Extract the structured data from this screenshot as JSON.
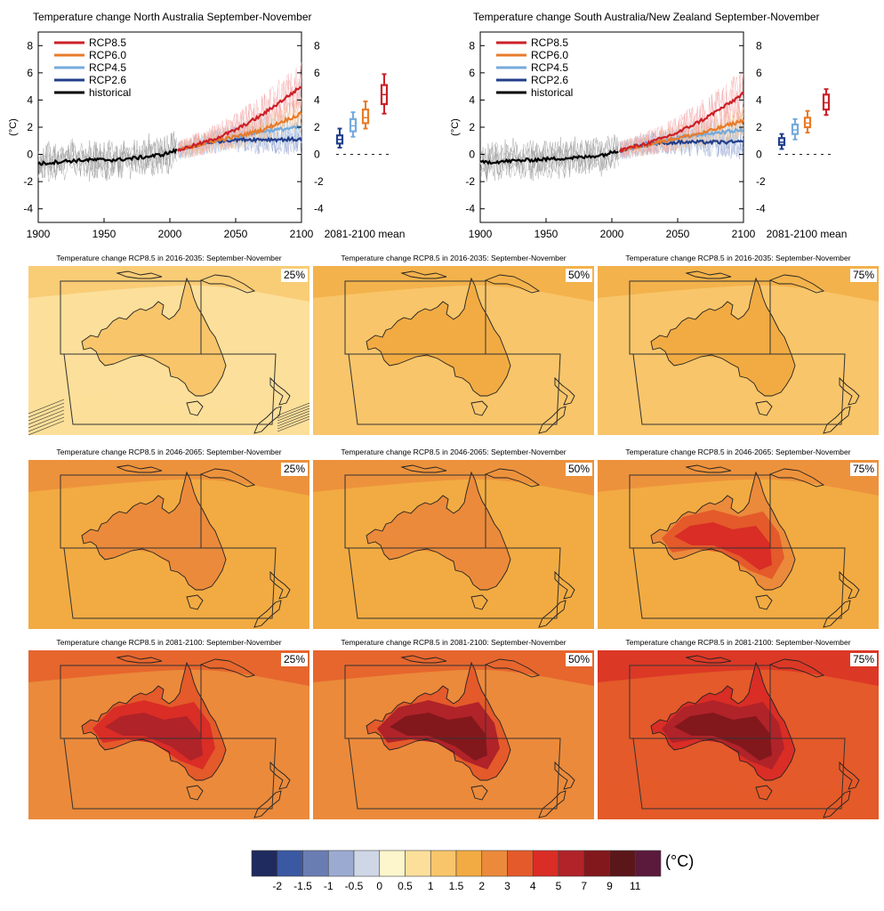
{
  "chart_data": [
    {
      "type": "line",
      "title": "Temperature change North Australia September-November",
      "ylabel": "(°C)",
      "xlim": [
        1900,
        2100
      ],
      "ylim": [
        -5,
        9
      ],
      "x_ticks": [
        "1900",
        "1950",
        "2000",
        "2050",
        "2100"
      ],
      "y_ticks": [
        "-4",
        "-2",
        "0",
        "2",
        "4",
        "6",
        "8"
      ],
      "legend_position": "top-left",
      "series": [
        {
          "name": "RCP8.5",
          "color": "#cc2027",
          "x": [
            2006,
            2030,
            2050,
            2070,
            2090,
            2100
          ],
          "y": [
            0.3,
            1.0,
            1.8,
            2.9,
            4.3,
            5.0
          ]
        },
        {
          "name": "RCP6.0",
          "color": "#e87b2a",
          "x": [
            2006,
            2030,
            2050,
            2070,
            2090,
            2100
          ],
          "y": [
            0.3,
            0.9,
            1.3,
            1.8,
            2.6,
            3.0
          ]
        },
        {
          "name": "RCP4.5",
          "color": "#75aadb",
          "x": [
            2006,
            2030,
            2050,
            2070,
            2090,
            2100
          ],
          "y": [
            0.3,
            0.9,
            1.3,
            1.7,
            1.9,
            2.0
          ]
        },
        {
          "name": "RCP2.6",
          "color": "#223f8b",
          "x": [
            2006,
            2030,
            2050,
            2070,
            2090,
            2100
          ],
          "y": [
            0.3,
            0.9,
            1.1,
            1.1,
            1.1,
            1.1
          ]
        },
        {
          "name": "historical",
          "color": "#000000",
          "x": [
            1900,
            1920,
            1940,
            1960,
            1980,
            1995,
            2005
          ],
          "y": [
            -0.7,
            -0.5,
            -0.4,
            -0.4,
            -0.2,
            0.0,
            0.3
          ]
        }
      ],
      "boxes": {
        "label": "2081-2100 mean",
        "items": [
          {
            "series": "RCP2.6",
            "color": "#223f8b",
            "min": 0.5,
            "q1": 0.8,
            "median": 1.1,
            "q3": 1.4,
            "max": 1.9
          },
          {
            "series": "RCP4.5",
            "color": "#75aadb",
            "min": 1.3,
            "q1": 1.7,
            "median": 2.1,
            "q3": 2.6,
            "max": 3.1
          },
          {
            "series": "RCP6.0",
            "color": "#e87b2a",
            "min": 1.9,
            "q1": 2.3,
            "median": 2.7,
            "q3": 3.3,
            "max": 3.9
          },
          {
            "series": "RCP8.5",
            "color": "#cc2027",
            "min": 3.0,
            "q1": 3.7,
            "median": 4.4,
            "q3": 5.1,
            "max": 5.9
          }
        ]
      }
    },
    {
      "type": "line",
      "title": "Temperature change South Australia/New Zealand September-November",
      "ylabel": "(°C)",
      "xlim": [
        1900,
        2100
      ],
      "ylim": [
        -5,
        9
      ],
      "x_ticks": [
        "1900",
        "1950",
        "2000",
        "2050",
        "2100"
      ],
      "y_ticks": [
        "-4",
        "-2",
        "0",
        "2",
        "4",
        "6",
        "8"
      ],
      "legend_position": "top-left",
      "series": [
        {
          "name": "RCP8.5",
          "color": "#cc2027",
          "x": [
            2006,
            2030,
            2050,
            2070,
            2090,
            2100
          ],
          "y": [
            0.3,
            0.9,
            1.6,
            2.6,
            3.8,
            4.5
          ]
        },
        {
          "name": "RCP6.0",
          "color": "#e87b2a",
          "x": [
            2006,
            2030,
            2050,
            2070,
            2090,
            2100
          ],
          "y": [
            0.3,
            0.8,
            1.2,
            1.6,
            2.2,
            2.5
          ]
        },
        {
          "name": "RCP4.5",
          "color": "#75aadb",
          "x": [
            2006,
            2030,
            2050,
            2070,
            2090,
            2100
          ],
          "y": [
            0.3,
            0.8,
            1.2,
            1.5,
            1.7,
            1.8
          ]
        },
        {
          "name": "RCP2.6",
          "color": "#223f8b",
          "x": [
            2006,
            2030,
            2050,
            2070,
            2090,
            2100
          ],
          "y": [
            0.3,
            0.8,
            0.9,
            0.9,
            0.9,
            0.9
          ]
        },
        {
          "name": "historical",
          "color": "#000000",
          "x": [
            1900,
            1920,
            1940,
            1960,
            1980,
            1995,
            2005
          ],
          "y": [
            -0.6,
            -0.5,
            -0.4,
            -0.3,
            -0.2,
            0.0,
            0.3
          ]
        }
      ],
      "boxes": {
        "label": "2081-2100 mean",
        "items": [
          {
            "series": "RCP2.6",
            "color": "#223f8b",
            "min": 0.4,
            "q1": 0.7,
            "median": 0.9,
            "q3": 1.2,
            "max": 1.5
          },
          {
            "series": "RCP4.5",
            "color": "#75aadb",
            "min": 1.1,
            "q1": 1.5,
            "median": 1.8,
            "q3": 2.2,
            "max": 2.6
          },
          {
            "series": "RCP6.0",
            "color": "#e87b2a",
            "min": 1.6,
            "q1": 2.0,
            "median": 2.3,
            "q3": 2.7,
            "max": 3.2
          },
          {
            "series": "RCP8.5",
            "color": "#cc2027",
            "min": 2.9,
            "q1": 3.3,
            "median": 3.8,
            "q3": 4.4,
            "max": 4.8
          }
        ]
      }
    },
    {
      "type": "heatmap",
      "colorbar": {
        "unit": "(°C)",
        "colors": [
          "#1f2b5e",
          "#3b58a2",
          "#6a7db3",
          "#9aaad0",
          "#cfd6e6",
          "#fdf6cc",
          "#fcdf9a",
          "#f8c56a",
          "#f2ab42",
          "#eb8a3b",
          "#e45a2a",
          "#d92d26",
          "#b02329",
          "#82181c",
          "#5a1619",
          "#5b1a3b"
        ],
        "labels": [
          "-2",
          "-1.5",
          "-1",
          "-0.5",
          "0",
          "0.5",
          "1",
          "1.5",
          "2",
          "3",
          "4",
          "5",
          "7",
          "9",
          "11"
        ]
      },
      "maps": [
        {
          "title": "Temperature change RCP8.5 in 2016-2035: September-November",
          "percentile": "25%",
          "background_class": "0.5-1",
          "land_class": "1-1.5",
          "hatched": true
        },
        {
          "title": "Temperature change RCP8.5 in 2016-2035: September-November",
          "percentile": "50%",
          "background_class": "1-1.5",
          "land_class": "1.5-2",
          "hatched": false
        },
        {
          "title": "Temperature change RCP8.5 in 2016-2035: September-November",
          "percentile": "75%",
          "background_class": "1-1.5",
          "land_class": "1.5-2",
          "hatched": false
        },
        {
          "title": "Temperature change RCP8.5 in 2046-2065: September-November",
          "percentile": "25%",
          "background_class": "1.5-2",
          "land_class": "2-3",
          "hatched": false
        },
        {
          "title": "Temperature change RCP8.5 in 2046-2065: September-November",
          "percentile": "50%",
          "background_class": "1.5-2",
          "land_class": "2-3",
          "hatched": false
        },
        {
          "title": "Temperature change RCP8.5 in 2046-2065: September-November",
          "percentile": "75%",
          "background_class": "1.5-2",
          "land_class": "3-4",
          "hatched": false
        },
        {
          "title": "Temperature change RCP8.5 in 2081-2100: September-November",
          "percentile": "25%",
          "background_class": "2-3",
          "land_class": "4-5",
          "hatched": false
        },
        {
          "title": "Temperature change RCP8.5 in 2081-2100: September-November",
          "percentile": "50%",
          "background_class": "2-3",
          "land_class": "5-7",
          "hatched": false
        },
        {
          "title": "Temperature change RCP8.5 in 2081-2100: September-November",
          "percentile": "75%",
          "background_class": "3-4",
          "land_class": "5-7",
          "hatched": false
        }
      ]
    }
  ]
}
